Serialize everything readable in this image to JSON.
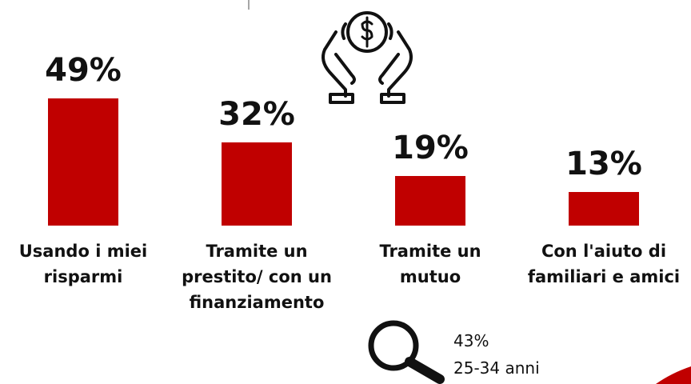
{
  "chart_data": {
    "type": "bar",
    "categories": [
      "Usando i miei risparmi",
      "Tramite un prestito/ con un finanziamento",
      "Tramite un mutuo",
      "Con l'aiuto di familiari e amici"
    ],
    "values": [
      49,
      32,
      19,
      13
    ],
    "value_labels": [
      "49%",
      "32%",
      "19%",
      "13%"
    ],
    "color": "#c00000"
  },
  "annotations": [
    "43%",
    "25-34 anni"
  ]
}
